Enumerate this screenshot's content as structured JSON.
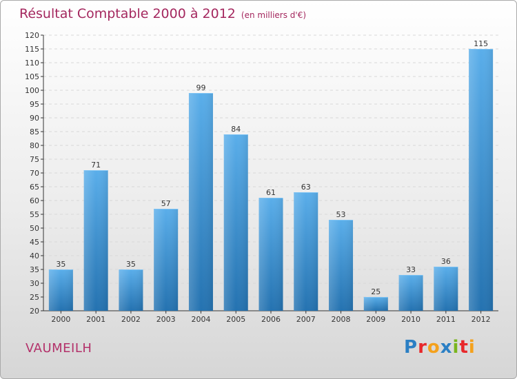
{
  "title": "Résultat Comptable 2000 à 2012",
  "subtitle": "(en milliers d'€)",
  "place": "VAUMEILH",
  "logo": {
    "text": "Proxiti",
    "letters": [
      {
        "char": "P",
        "color": "#2b7fc4"
      },
      {
        "char": "r",
        "color": "#e8282b"
      },
      {
        "char": "o",
        "color": "#f4a11c"
      },
      {
        "char": "x",
        "color": "#2b7fc4"
      },
      {
        "char": "i",
        "color": "#7ab51d"
      },
      {
        "char": "t",
        "color": "#e8282b"
      },
      {
        "char": "i",
        "color": "#f4a11c"
      }
    ]
  },
  "colors": {
    "bar_top": "#5aaeea",
    "bar_bottom": "#2472b0",
    "grid": "#d8d8d8",
    "axis": "#333333"
  },
  "chart_data": {
    "type": "bar",
    "title": "Résultat Comptable 2000 à 2012",
    "xlabel": "",
    "ylabel": "en milliers d'€",
    "categories": [
      "2000",
      "2001",
      "2002",
      "2003",
      "2004",
      "2005",
      "2006",
      "2007",
      "2008",
      "2009",
      "2010",
      "2011",
      "2012"
    ],
    "values": [
      35,
      71,
      35,
      57,
      99,
      84,
      61,
      63,
      53,
      25,
      33,
      36,
      115
    ],
    "ylim": [
      20,
      120
    ],
    "yticks": [
      20,
      25,
      30,
      35,
      40,
      45,
      50,
      55,
      60,
      65,
      70,
      75,
      80,
      85,
      90,
      95,
      100,
      105,
      110,
      115,
      120
    ],
    "grid": true
  }
}
